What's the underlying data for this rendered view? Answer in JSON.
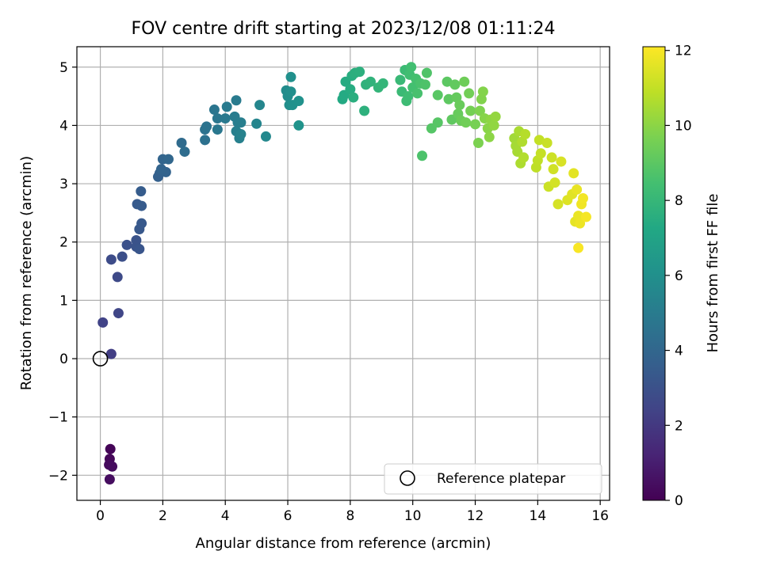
{
  "chart_data": {
    "type": "scatter",
    "title": "FOV centre drift starting at 2023/12/08 01:11:24",
    "xlabel": "Angular distance from reference (arcmin)",
    "ylabel": "Rotation from reference (arcmin)",
    "xlim": [
      -0.75,
      16.3
    ],
    "ylim": [
      -2.43,
      5.35
    ],
    "xticks": [
      0,
      2,
      4,
      6,
      8,
      10,
      12,
      14,
      16
    ],
    "yticks": [
      -2,
      -1,
      0,
      1,
      2,
      3,
      4,
      5
    ],
    "xtick_labels": [
      "0",
      "2",
      "4",
      "6",
      "8",
      "10",
      "12",
      "14",
      "16"
    ],
    "ytick_labels": [
      "−2",
      "−1",
      "0",
      "1",
      "2",
      "3",
      "4",
      "5"
    ],
    "grid": true,
    "legend": {
      "position": "lower-right",
      "label": "Reference platepar"
    },
    "reference_point": {
      "x": 0,
      "y": 0
    },
    "colorbar": {
      "label": "Hours from first FF file",
      "range": [
        0,
        12.1
      ],
      "ticks": [
        0,
        2,
        4,
        6,
        8,
        10,
        12
      ],
      "tick_labels": [
        "0",
        "2",
        "4",
        "6",
        "8",
        "10",
        "12"
      ],
      "colormap": "viridis"
    },
    "points": [
      {
        "x": 0.32,
        "y": -1.55,
        "t": 0.1
      },
      {
        "x": 0.3,
        "y": -1.72,
        "t": 0.2
      },
      {
        "x": 0.28,
        "y": -1.82,
        "t": 0.3
      },
      {
        "x": 0.38,
        "y": -1.85,
        "t": 0.35
      },
      {
        "x": 0.3,
        "y": -2.07,
        "t": 0.4
      },
      {
        "x": 0.35,
        "y": 0.08,
        "t": 2.2
      },
      {
        "x": 0.08,
        "y": 0.62,
        "t": 2.4
      },
      {
        "x": 0.58,
        "y": 0.78,
        "t": 2.5
      },
      {
        "x": 0.55,
        "y": 1.4,
        "t": 2.7
      },
      {
        "x": 0.35,
        "y": 1.7,
        "t": 2.8
      },
      {
        "x": 0.7,
        "y": 1.75,
        "t": 2.9
      },
      {
        "x": 0.85,
        "y": 1.95,
        "t": 3.0
      },
      {
        "x": 1.15,
        "y": 2.03,
        "t": 3.1
      },
      {
        "x": 1.15,
        "y": 1.92,
        "t": 3.1
      },
      {
        "x": 1.25,
        "y": 1.88,
        "t": 3.2
      },
      {
        "x": 1.25,
        "y": 2.22,
        "t": 3.3
      },
      {
        "x": 1.32,
        "y": 2.32,
        "t": 3.35
      },
      {
        "x": 1.18,
        "y": 2.65,
        "t": 3.4
      },
      {
        "x": 1.32,
        "y": 2.62,
        "t": 3.45
      },
      {
        "x": 1.3,
        "y": 2.87,
        "t": 3.5
      },
      {
        "x": 1.85,
        "y": 3.12,
        "t": 3.7
      },
      {
        "x": 1.9,
        "y": 3.18,
        "t": 3.75
      },
      {
        "x": 2.1,
        "y": 3.2,
        "t": 3.8
      },
      {
        "x": 1.95,
        "y": 3.25,
        "t": 3.85
      },
      {
        "x": 2.0,
        "y": 3.42,
        "t": 3.9
      },
      {
        "x": 2.18,
        "y": 3.42,
        "t": 4.0
      },
      {
        "x": 2.6,
        "y": 3.7,
        "t": 4.2
      },
      {
        "x": 2.7,
        "y": 3.55,
        "t": 4.3
      },
      {
        "x": 3.35,
        "y": 3.75,
        "t": 4.5
      },
      {
        "x": 3.35,
        "y": 3.93,
        "t": 4.55
      },
      {
        "x": 3.4,
        "y": 3.98,
        "t": 4.6
      },
      {
        "x": 3.65,
        "y": 4.27,
        "t": 4.7
      },
      {
        "x": 3.75,
        "y": 4.12,
        "t": 4.75
      },
      {
        "x": 3.75,
        "y": 3.93,
        "t": 4.8
      },
      {
        "x": 4.0,
        "y": 4.12,
        "t": 4.9
      },
      {
        "x": 4.05,
        "y": 4.32,
        "t": 4.95
      },
      {
        "x": 4.35,
        "y": 4.43,
        "t": 5.0
      },
      {
        "x": 4.3,
        "y": 4.15,
        "t": 5.05
      },
      {
        "x": 4.4,
        "y": 4.05,
        "t": 5.1
      },
      {
        "x": 4.5,
        "y": 4.05,
        "t": 5.15
      },
      {
        "x": 4.35,
        "y": 3.9,
        "t": 5.2
      },
      {
        "x": 4.45,
        "y": 3.78,
        "t": 5.25
      },
      {
        "x": 4.5,
        "y": 3.85,
        "t": 5.3
      },
      {
        "x": 5.0,
        "y": 4.03,
        "t": 5.45
      },
      {
        "x": 5.1,
        "y": 4.35,
        "t": 5.5
      },
      {
        "x": 5.3,
        "y": 3.81,
        "t": 5.6
      },
      {
        "x": 5.95,
        "y": 4.6,
        "t": 5.8
      },
      {
        "x": 6.0,
        "y": 4.5,
        "t": 5.85
      },
      {
        "x": 6.05,
        "y": 4.35,
        "t": 5.9
      },
      {
        "x": 6.1,
        "y": 4.58,
        "t": 5.95
      },
      {
        "x": 6.1,
        "y": 4.83,
        "t": 6.0
      },
      {
        "x": 6.15,
        "y": 4.35,
        "t": 6.05
      },
      {
        "x": 6.35,
        "y": 4.42,
        "t": 6.1
      },
      {
        "x": 6.35,
        "y": 4.0,
        "t": 6.15
      },
      {
        "x": 7.75,
        "y": 4.45,
        "t": 7.3
      },
      {
        "x": 7.8,
        "y": 4.52,
        "t": 7.35
      },
      {
        "x": 7.85,
        "y": 4.75,
        "t": 7.4
      },
      {
        "x": 8.0,
        "y": 4.62,
        "t": 7.45
      },
      {
        "x": 8.05,
        "y": 4.85,
        "t": 7.5
      },
      {
        "x": 8.1,
        "y": 4.48,
        "t": 7.55
      },
      {
        "x": 8.15,
        "y": 4.9,
        "t": 7.6
      },
      {
        "x": 8.3,
        "y": 4.92,
        "t": 7.65
      },
      {
        "x": 8.45,
        "y": 4.25,
        "t": 7.7
      },
      {
        "x": 8.5,
        "y": 4.7,
        "t": 7.75
      },
      {
        "x": 8.65,
        "y": 4.75,
        "t": 7.8
      },
      {
        "x": 8.9,
        "y": 4.65,
        "t": 7.9
      },
      {
        "x": 9.05,
        "y": 4.72,
        "t": 7.95
      },
      {
        "x": 9.6,
        "y": 4.78,
        "t": 8.1
      },
      {
        "x": 9.65,
        "y": 4.58,
        "t": 8.15
      },
      {
        "x": 9.75,
        "y": 4.95,
        "t": 8.2
      },
      {
        "x": 9.8,
        "y": 4.42,
        "t": 8.25
      },
      {
        "x": 9.85,
        "y": 4.5,
        "t": 8.3
      },
      {
        "x": 9.9,
        "y": 4.87,
        "t": 8.35
      },
      {
        "x": 9.95,
        "y": 5.0,
        "t": 8.4
      },
      {
        "x": 10.0,
        "y": 4.65,
        "t": 8.45
      },
      {
        "x": 10.1,
        "y": 4.8,
        "t": 8.5
      },
      {
        "x": 10.15,
        "y": 4.55,
        "t": 8.55
      },
      {
        "x": 10.25,
        "y": 4.72,
        "t": 8.6
      },
      {
        "x": 10.3,
        "y": 3.48,
        "t": 8.65
      },
      {
        "x": 10.4,
        "y": 4.7,
        "t": 8.7
      },
      {
        "x": 10.45,
        "y": 4.9,
        "t": 8.75
      },
      {
        "x": 10.6,
        "y": 3.95,
        "t": 8.85
      },
      {
        "x": 10.8,
        "y": 4.05,
        "t": 8.9
      },
      {
        "x": 10.8,
        "y": 4.52,
        "t": 8.95
      },
      {
        "x": 11.1,
        "y": 4.75,
        "t": 9.0
      },
      {
        "x": 11.15,
        "y": 4.45,
        "t": 9.05
      },
      {
        "x": 11.25,
        "y": 4.1,
        "t": 9.1
      },
      {
        "x": 11.35,
        "y": 4.7,
        "t": 9.15
      },
      {
        "x": 11.4,
        "y": 4.48,
        "t": 9.2
      },
      {
        "x": 11.45,
        "y": 4.2,
        "t": 9.25
      },
      {
        "x": 11.5,
        "y": 4.35,
        "t": 9.3
      },
      {
        "x": 11.55,
        "y": 4.08,
        "t": 9.35
      },
      {
        "x": 11.65,
        "y": 4.75,
        "t": 9.4
      },
      {
        "x": 11.7,
        "y": 4.05,
        "t": 9.45
      },
      {
        "x": 11.8,
        "y": 4.55,
        "t": 9.5
      },
      {
        "x": 11.85,
        "y": 4.25,
        "t": 9.55
      },
      {
        "x": 12.0,
        "y": 4.02,
        "t": 9.6
      },
      {
        "x": 12.1,
        "y": 3.7,
        "t": 9.7
      },
      {
        "x": 12.15,
        "y": 4.25,
        "t": 9.75
      },
      {
        "x": 12.2,
        "y": 4.45,
        "t": 9.8
      },
      {
        "x": 12.25,
        "y": 4.58,
        "t": 9.85
      },
      {
        "x": 12.3,
        "y": 4.12,
        "t": 9.9
      },
      {
        "x": 12.4,
        "y": 3.95,
        "t": 9.95
      },
      {
        "x": 12.45,
        "y": 3.8,
        "t": 10.0
      },
      {
        "x": 12.5,
        "y": 4.1,
        "t": 10.05
      },
      {
        "x": 12.6,
        "y": 4.0,
        "t": 10.1
      },
      {
        "x": 12.65,
        "y": 4.15,
        "t": 10.15
      },
      {
        "x": 13.25,
        "y": 3.78,
        "t": 10.4
      },
      {
        "x": 13.3,
        "y": 3.65,
        "t": 10.45
      },
      {
        "x": 13.35,
        "y": 3.55,
        "t": 10.5
      },
      {
        "x": 13.4,
        "y": 3.9,
        "t": 10.55
      },
      {
        "x": 13.45,
        "y": 3.35,
        "t": 10.6
      },
      {
        "x": 13.5,
        "y": 3.72,
        "t": 10.65
      },
      {
        "x": 13.55,
        "y": 3.45,
        "t": 10.7
      },
      {
        "x": 13.6,
        "y": 3.85,
        "t": 10.75
      },
      {
        "x": 13.95,
        "y": 3.28,
        "t": 10.9
      },
      {
        "x": 14.0,
        "y": 3.4,
        "t": 10.95
      },
      {
        "x": 14.05,
        "y": 3.75,
        "t": 11.0
      },
      {
        "x": 14.1,
        "y": 3.52,
        "t": 11.05
      },
      {
        "x": 14.3,
        "y": 3.7,
        "t": 11.1
      },
      {
        "x": 14.35,
        "y": 2.95,
        "t": 11.15
      },
      {
        "x": 14.45,
        "y": 3.45,
        "t": 11.2
      },
      {
        "x": 14.5,
        "y": 3.25,
        "t": 11.25
      },
      {
        "x": 14.55,
        "y": 3.02,
        "t": 11.3
      },
      {
        "x": 14.65,
        "y": 2.65,
        "t": 11.35
      },
      {
        "x": 14.75,
        "y": 3.38,
        "t": 11.4
      },
      {
        "x": 14.95,
        "y": 2.72,
        "t": 11.5
      },
      {
        "x": 15.1,
        "y": 2.82,
        "t": 11.55
      },
      {
        "x": 15.15,
        "y": 3.18,
        "t": 11.6
      },
      {
        "x": 15.2,
        "y": 2.35,
        "t": 11.65
      },
      {
        "x": 15.25,
        "y": 2.9,
        "t": 11.7
      },
      {
        "x": 15.3,
        "y": 2.45,
        "t": 11.75
      },
      {
        "x": 15.35,
        "y": 2.32,
        "t": 11.8
      },
      {
        "x": 15.4,
        "y": 2.65,
        "t": 11.85
      },
      {
        "x": 15.45,
        "y": 2.75,
        "t": 11.9
      },
      {
        "x": 15.55,
        "y": 2.43,
        "t": 11.95
      },
      {
        "x": 15.3,
        "y": 1.9,
        "t": 12.0
      }
    ]
  }
}
